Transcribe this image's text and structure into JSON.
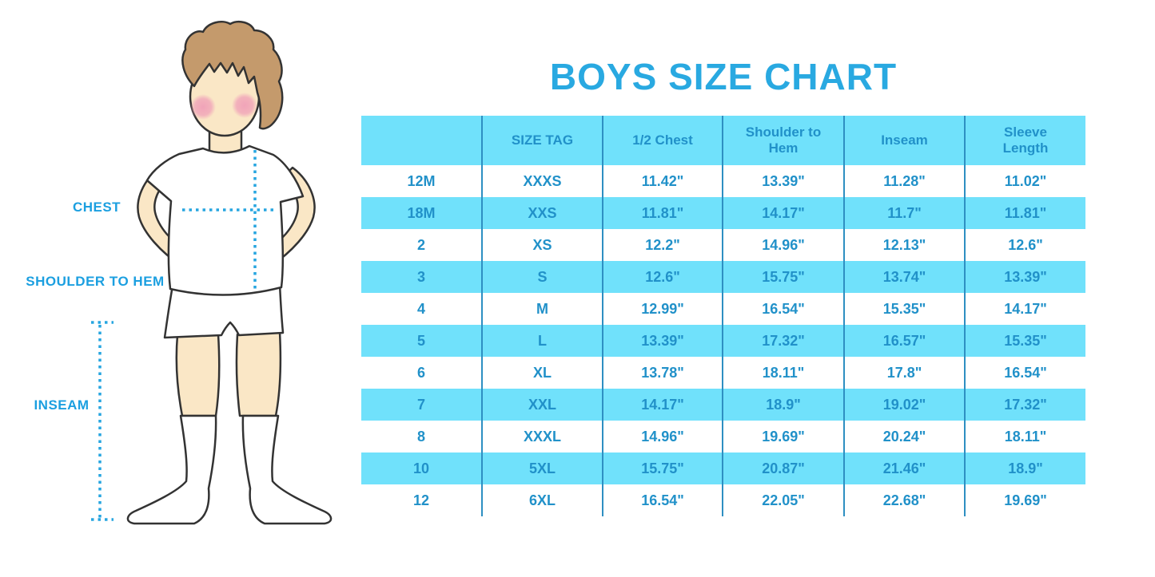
{
  "title": "BOYS SIZE CHART",
  "figure": {
    "labels": {
      "chest": "CHEST",
      "shoulder_to_hem": "SHOULDER TO HEM",
      "inseam": "INSEAM"
    }
  },
  "colors": {
    "accent_blue": "#29A9E1",
    "label_blue": "#1B9FE0",
    "table_text": "#2191C9",
    "band_cyan": "#70E1FB",
    "divider_blue": "#2E8FC2",
    "skin": "#FAE7C6",
    "hair": "#C49A6C",
    "cheek_pink": "#F0A0B8"
  },
  "chart_data": {
    "type": "table",
    "title": "BOYS SIZE CHART",
    "columns": [
      "",
      "SIZE TAG",
      "1/2 Chest",
      "Shoulder to Hem",
      "Inseam",
      "Sleeve Length"
    ],
    "rows": [
      [
        "12M",
        "XXXS",
        "11.42\"",
        "13.39\"",
        "11.28\"",
        "11.02\""
      ],
      [
        "18M",
        "XXS",
        "11.81\"",
        "14.17\"",
        "11.7\"",
        "11.81\""
      ],
      [
        "2",
        "XS",
        "12.2\"",
        "14.96\"",
        "12.13\"",
        "12.6\""
      ],
      [
        "3",
        "S",
        "12.6\"",
        "15.75\"",
        "13.74\"",
        "13.39\""
      ],
      [
        "4",
        "M",
        "12.99\"",
        "16.54\"",
        "15.35\"",
        "14.17\""
      ],
      [
        "5",
        "L",
        "13.39\"",
        "17.32\"",
        "16.57\"",
        "15.35\""
      ],
      [
        "6",
        "XL",
        "13.78\"",
        "18.11\"",
        "17.8\"",
        "16.54\""
      ],
      [
        "7",
        "XXL",
        "14.17\"",
        "18.9\"",
        "19.02\"",
        "17.32\""
      ],
      [
        "8",
        "XXXL",
        "14.96\"",
        "19.69\"",
        "20.24\"",
        "18.11\""
      ],
      [
        "10",
        "5XL",
        "15.75\"",
        "20.87\"",
        "21.46\"",
        "18.9\""
      ],
      [
        "12",
        "6XL",
        "16.54\"",
        "22.05\"",
        "22.68\"",
        "19.69\""
      ]
    ],
    "layout": {
      "header_background": "#70E1FB",
      "row_striping": [
        "white",
        "#70E1FB"
      ],
      "column_dividers": true,
      "horizontal_dividers": false
    }
  }
}
